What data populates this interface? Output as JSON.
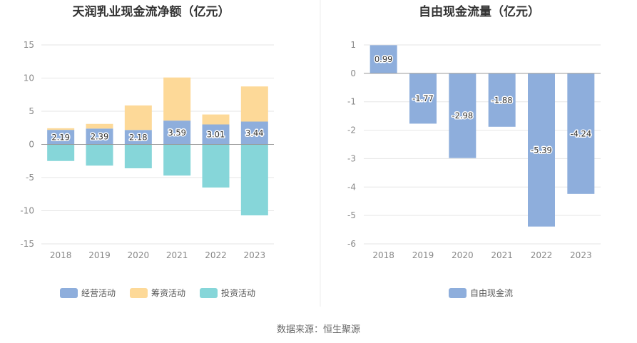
{
  "chart_data": [
    {
      "type": "bar",
      "stacked": true,
      "title": "天润乳业现金流净额（亿元）",
      "categories": [
        "2018",
        "2019",
        "2020",
        "2021",
        "2022",
        "2023"
      ],
      "ylim": [
        -15,
        15
      ],
      "yticks": [
        15,
        10,
        5,
        0,
        -5,
        -10,
        -15
      ],
      "grid": true,
      "legend_position": "bottom",
      "series": [
        {
          "name": "经营活动",
          "color": "#8eaedc",
          "values": [
            2.19,
            2.39,
            2.18,
            3.59,
            3.01,
            3.44
          ],
          "show_labels": true
        },
        {
          "name": "筹资活动",
          "color": "#fdd998",
          "values": [
            0.25,
            0.7,
            3.7,
            6.5,
            1.5,
            5.3
          ],
          "show_labels": false
        },
        {
          "name": "投资活动",
          "color": "#86d6d9",
          "values": [
            -2.5,
            -3.2,
            -3.6,
            -4.7,
            -6.5,
            -10.7
          ],
          "show_labels": false
        }
      ]
    },
    {
      "type": "bar",
      "title": "自由现金流量（亿元）",
      "categories": [
        "2018",
        "2019",
        "2020",
        "2021",
        "2022",
        "2023"
      ],
      "ylim": [
        -6,
        1
      ],
      "yticks": [
        1,
        0,
        -1,
        -2,
        -3,
        -4,
        -5,
        -6
      ],
      "grid": true,
      "legend_position": "bottom",
      "series": [
        {
          "name": "自由现金流",
          "color": "#8eaedc",
          "values": [
            0.99,
            -1.77,
            -2.98,
            -1.88,
            -5.39,
            -4.24
          ],
          "show_labels": true
        }
      ]
    }
  ],
  "source_text": "数据来源：恒生聚源",
  "colors": {
    "grid": "#e6e6e6",
    "zero_line": "#999999",
    "divider": "#eeeeee"
  }
}
